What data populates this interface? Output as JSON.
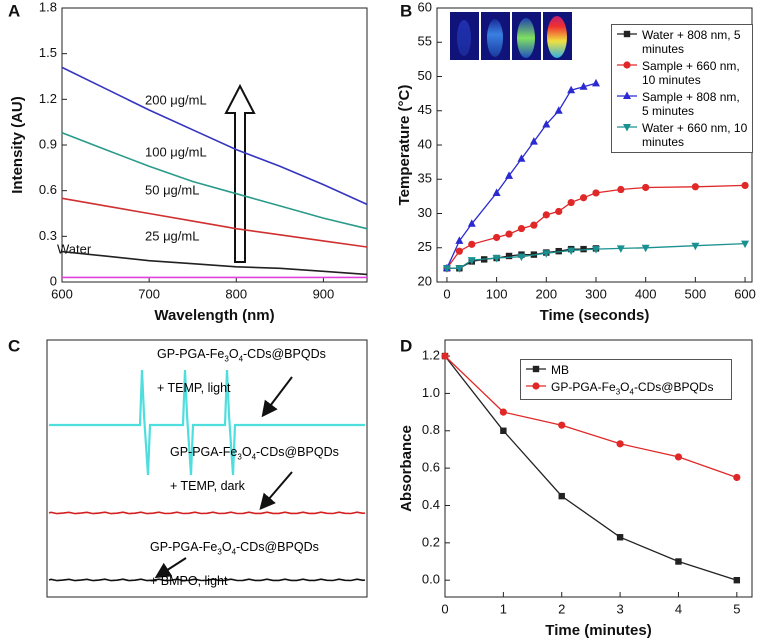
{
  "chart_data": [
    {
      "type": "line",
      "panel": "A",
      "xlabel": "Wavelength (nm)",
      "ylabel": "Intensity (AU)",
      "x": [
        600,
        650,
        700,
        750,
        800,
        850,
        900,
        950
      ],
      "xlim": [
        600,
        950
      ],
      "ylim": [
        0,
        1.8
      ],
      "xticks": [
        600,
        700,
        800,
        900
      ],
      "yticks": [
        0,
        0.3,
        0.6,
        0.9,
        1.2,
        1.5,
        1.8
      ],
      "legend": "inline",
      "series": [
        {
          "name": "Water",
          "color": "#e040e0",
          "values": [
            0.03,
            0.03,
            0.03,
            0.03,
            0.03,
            0.03,
            0.03,
            0.03
          ]
        },
        {
          "name": "25 μg/mL",
          "color": "#222222",
          "values": [
            0.2,
            0.17,
            0.14,
            0.12,
            0.1,
            0.09,
            0.07,
            0.05
          ]
        },
        {
          "name": "50 μg/mL",
          "color": "#d03030",
          "values": [
            0.55,
            0.5,
            0.45,
            0.4,
            0.35,
            0.31,
            0.27,
            0.23
          ]
        },
        {
          "name": "100 μg/mL",
          "color": "#2a9a8a",
          "values": [
            0.98,
            0.87,
            0.76,
            0.66,
            0.58,
            0.5,
            0.42,
            0.35
          ]
        },
        {
          "name": "200 μg/mL",
          "color": "#3535c0",
          "values": [
            1.41,
            1.27,
            1.13,
            1.0,
            0.87,
            0.76,
            0.64,
            0.51
          ]
        }
      ]
    },
    {
      "type": "line",
      "panel": "B",
      "xlabel": "Time (seconds)",
      "ylabel": "Temperature (°C)",
      "xlim": [
        -20,
        614
      ],
      "ylim": [
        20,
        60
      ],
      "xticks": [
        0,
        100,
        200,
        300,
        400,
        500,
        600
      ],
      "yticks": [
        20,
        25,
        30,
        35,
        40,
        45,
        50,
        55,
        60
      ],
      "legend": "upper right",
      "series": [
        {
          "name": "Water + 808 nm, 5 minutes",
          "color": "#222222",
          "marker": "square",
          "x": [
            0,
            25,
            50,
            75,
            100,
            125,
            150,
            175,
            200,
            225,
            250,
            275,
            300
          ],
          "values": [
            22,
            22,
            23,
            23.3,
            23.5,
            23.8,
            24,
            24,
            24.3,
            24.5,
            24.8,
            24.8,
            24.9
          ]
        },
        {
          "name": "Sample + 660 nm, 10 minutes",
          "color": "#e02828",
          "marker": "circle",
          "x": [
            0,
            25,
            50,
            100,
            125,
            150,
            175,
            200,
            225,
            250,
            275,
            300,
            350,
            400,
            500,
            600
          ],
          "values": [
            22,
            24.5,
            25.5,
            26.5,
            27,
            27.8,
            28.3,
            29.8,
            30.3,
            31.6,
            32.3,
            33,
            33.5,
            33.8,
            33.9,
            34.1
          ]
        },
        {
          "name": "Sample + 808 nm, 5 minutes",
          "color": "#2a2ad0",
          "marker": "triangle-up",
          "x": [
            0,
            25,
            50,
            100,
            125,
            150,
            175,
            200,
            225,
            250,
            275,
            300
          ],
          "values": [
            22,
            26,
            28.5,
            33,
            35.5,
            38,
            40.5,
            43,
            45,
            48,
            48.5,
            49
          ]
        },
        {
          "name": "Water + 660 nm, 10 minutes",
          "color": "#1a9090",
          "marker": "triangle-down",
          "x": [
            0,
            25,
            50,
            100,
            150,
            200,
            250,
            300,
            350,
            400,
            500,
            600
          ],
          "values": [
            22,
            22,
            23.2,
            23.5,
            23.7,
            24.2,
            24.6,
            24.8,
            24.9,
            25,
            25.3,
            25.6
          ]
        }
      ]
    },
    {
      "type": "spectra",
      "panel": "C",
      "series": [
        {
          "name": "GP-PGA-Fe3O4-CDs@BPQDs + TEMP, light",
          "color": "#4fdede"
        },
        {
          "name": "GP-PGA-Fe3O4-CDs@BPQDs + TEMP, dark",
          "color": "#d42020"
        },
        {
          "name": "GP-PGA-Fe3O4-CDs@BPQDs + BMPO, light",
          "color": "#111111"
        }
      ]
    },
    {
      "type": "line",
      "panel": "D",
      "xlabel": "Time (minutes)",
      "ylabel": "Absorbance",
      "x": [
        0,
        1,
        2,
        3,
        4,
        5
      ],
      "xlim": [
        0,
        5.26
      ],
      "ylim": [
        -0.09,
        1.286
      ],
      "xticks": [
        0,
        1,
        2,
        3,
        4,
        5
      ],
      "yticks": [
        {
          "value": 0,
          "label": "0.0"
        },
        0.2,
        0.4,
        0.6,
        0.8,
        {
          "value": 1,
          "label": "1.0"
        },
        1.2
      ],
      "legend": "upper right",
      "series": [
        {
          "name": "MB",
          "color": "#222222",
          "marker": "square",
          "values": [
            1.2,
            0.8,
            0.45,
            0.23,
            0.1,
            0.0
          ]
        },
        {
          "name": "GP-PGA-Fe3O4-CDs@BPQDs",
          "color": "#e02828",
          "marker": "circle",
          "values": [
            1.2,
            0.9,
            0.83,
            0.73,
            0.66,
            0.55
          ]
        }
      ]
    }
  ]
}
